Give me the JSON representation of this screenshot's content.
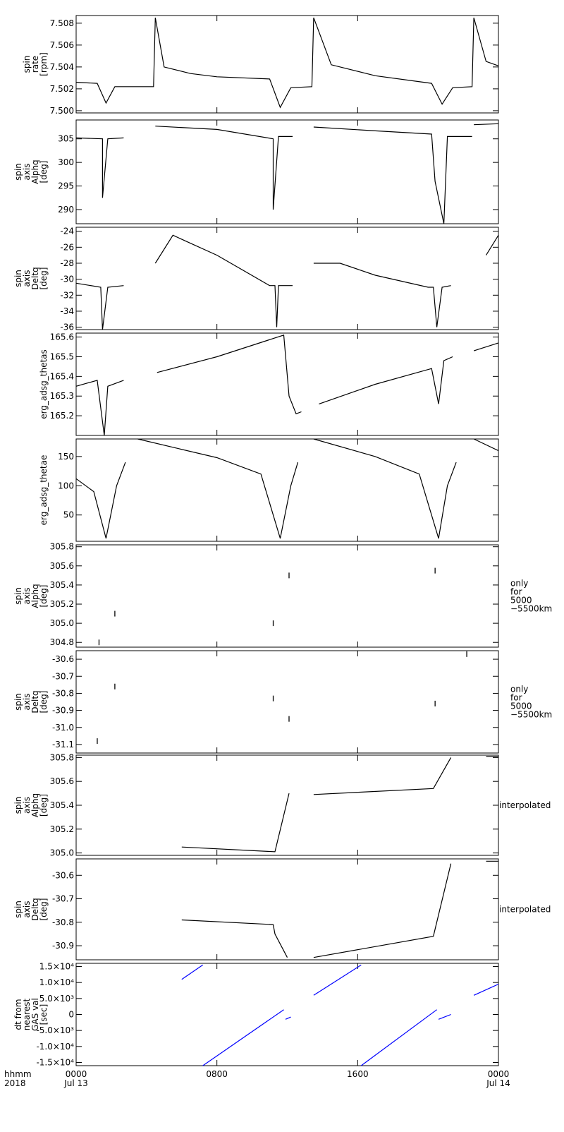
{
  "x_axis": {
    "xlim": [
      0,
      24
    ],
    "xticks": [
      {
        "value": 0,
        "label": "0000"
      },
      {
        "value": 8,
        "label": "0800"
      },
      {
        "value": 16,
        "label": "1600"
      },
      {
        "value": 24,
        "label": "0000"
      }
    ],
    "date_labels": [
      {
        "value": 0,
        "label": "Jul 13"
      },
      {
        "value": 24,
        "label": "Jul 14"
      }
    ],
    "corner_labels": [
      "hhmm",
      "2018"
    ]
  },
  "chart_data": [
    {
      "type": "line",
      "ylabel": [
        "spin",
        "rate",
        "[rpm]"
      ],
      "ylim": [
        7.4998,
        7.5087
      ],
      "yticks": [
        {
          "value": 7.5,
          "label": "7.500"
        },
        7.502,
        7.504,
        7.506,
        7.508
      ],
      "series": [
        {
          "color": "#000000",
          "x": [
            0,
            1.2,
            1.7,
            2.2,
            4.4,
            4.5,
            5,
            6.5,
            8,
            11,
            11.6,
            12.2,
            13.4,
            13.5,
            14.5,
            17,
            20.2,
            20.8,
            21.4,
            22.5,
            22.6,
            23.3,
            24
          ],
          "values": [
            7.5026,
            7.5025,
            7.5007,
            7.5022,
            7.5022,
            7.5085,
            7.504,
            7.5034,
            7.5031,
            7.5029,
            7.5003,
            7.5021,
            7.5022,
            7.5085,
            7.5042,
            7.5032,
            7.5025,
            7.5006,
            7.5021,
            7.5022,
            7.5085,
            7.5045,
            7.5041
          ]
        }
      ]
    },
    {
      "type": "line",
      "ylabel": [
        "spin",
        "axis",
        "Alphq",
        "[deg]"
      ],
      "ylim": [
        287,
        309
      ],
      "yticks": [
        290,
        295,
        300,
        305
      ],
      "series": [
        {
          "color": "#000000",
          "x": [
            0,
            1.5,
            1.5,
            1.8,
            2.7,
            3.5,
            4.5,
            8,
            11.2,
            11.2,
            11.5,
            12.3,
            13,
            13.5,
            17,
            20.2,
            20.4,
            20.9,
            21.1,
            22.5,
            22.55,
            22.6,
            24
          ],
          "values": [
            305.2,
            305,
            292.5,
            305,
            305.2,
            null,
            307.7,
            307,
            305,
            290,
            305.5,
            305.5,
            null,
            307.5,
            306.7,
            306,
            296,
            287,
            305.5,
            305.5,
            null,
            308,
            308.2
          ]
        }
      ]
    },
    {
      "type": "line",
      "ylabel": [
        "spin",
        "axis",
        "Deltq",
        "[deg]"
      ],
      "ylim": [
        -36.3,
        -23.5
      ],
      "yticks": [
        -36,
        -34,
        -32,
        -30,
        -28,
        -26,
        -24
      ],
      "series": [
        {
          "color": "#000000",
          "x": [
            0,
            1.4,
            1.5,
            1.8,
            2.7,
            3.5,
            4.5,
            5.5,
            6.5,
            8,
            11,
            11.3,
            11.4,
            11.5,
            12.3,
            13,
            13.5,
            15,
            17,
            20,
            20.3,
            20.5,
            20.8,
            21.3,
            22.5,
            23.3,
            24
          ],
          "values": [
            -30.5,
            -31,
            -36.3,
            -31,
            -30.8,
            null,
            -28,
            -24.5,
            -25.5,
            -27,
            -30.8,
            -30.8,
            -36,
            -30.8,
            -30.8,
            null,
            -28,
            -28,
            -29.5,
            -31,
            -31,
            -36,
            -31,
            -30.8,
            null,
            -27,
            -24.5
          ]
        }
      ]
    },
    {
      "type": "line",
      "ylabel": [
        "erg_adsg_thetas"
      ],
      "ylim": [
        165.1,
        165.62
      ],
      "yticks": [
        165.2,
        165.3,
        165.4,
        165.5,
        165.6
      ],
      "series": [
        {
          "color": "#000000",
          "x": [
            0,
            1.2,
            1.6,
            1.8,
            2.7,
            3.5,
            4.6,
            8,
            11.8,
            12.1,
            12.5,
            12.8,
            13.3,
            13.8,
            17,
            20.2,
            20.6,
            20.9,
            21.4,
            22,
            22.6,
            24
          ],
          "values": [
            165.35,
            165.38,
            165.1,
            165.35,
            165.38,
            null,
            165.42,
            165.5,
            165.61,
            165.3,
            165.21,
            165.22,
            null,
            165.26,
            165.36,
            165.44,
            165.26,
            165.48,
            165.5,
            null,
            165.53,
            165.57
          ]
        }
      ]
    },
    {
      "type": "line",
      "ylabel": [
        "erg_adsg_thetae"
      ],
      "ylim": [
        5,
        180
      ],
      "yticks": [
        50,
        100,
        150
      ],
      "series": [
        {
          "color": "#000000",
          "x": [
            0,
            1,
            1.7,
            2.3,
            2.8,
            3.2,
            3.5,
            8,
            10.5,
            11.6,
            12.2,
            12.6,
            13,
            13.5,
            17,
            19.5,
            20.6,
            21.1,
            21.6,
            22,
            22.6,
            24
          ],
          "values": [
            112,
            90,
            10,
            100,
            140,
            null,
            180,
            148,
            120,
            10,
            100,
            140,
            null,
            180,
            150,
            120,
            10,
            100,
            140,
            null,
            180,
            160
          ]
        }
      ]
    },
    {
      "type": "scatter",
      "ylabel": [
        "spin",
        "axis",
        "Alphq",
        "[deg]"
      ],
      "note": [
        "only",
        "for",
        "5000",
        "−5500km"
      ],
      "ylim": [
        304.75,
        305.82
      ],
      "yticks": [
        304.8,
        {
          "value": 305,
          "label": "305.0"
        },
        305.2,
        305.4,
        305.6,
        305.8
      ],
      "series": [
        {
          "color": "#000000",
          "x": [
            1.3,
            2.2,
            11.2,
            12.1,
            20.4
          ],
          "values": [
            304.8,
            305.1,
            305.0,
            305.5,
            305.55
          ]
        }
      ]
    },
    {
      "type": "scatter",
      "ylabel": [
        "spin",
        "axis",
        "Deltq",
        "[deg]"
      ],
      "note": [
        "only",
        "for",
        "5000",
        "−5500km"
      ],
      "ylim": [
        -31.15,
        -30.55
      ],
      "yticks": [
        {
          "value": -31.1,
          "label": "-31.1"
        },
        {
          "value": -31,
          "label": "-31.0"
        },
        -30.9,
        -30.8,
        -30.7,
        -30.6
      ],
      "series": [
        {
          "color": "#000000",
          "x": [
            1.2,
            2.2,
            11.2,
            12.1,
            20.4,
            22.2
          ],
          "values": [
            -31.08,
            -30.76,
            -30.83,
            -30.95,
            -30.86,
            -30.57
          ]
        }
      ]
    },
    {
      "type": "line",
      "ylabel": [
        "spin",
        "axis",
        "Alphq",
        "[deg]"
      ],
      "note": [
        "interpolated"
      ],
      "ylim": [
        304.98,
        305.82
      ],
      "yticks": [
        {
          "value": 305,
          "label": "305.0"
        },
        305.2,
        305.4,
        305.6,
        305.8
      ],
      "series": [
        {
          "color": "#000000",
          "x": [
            6,
            11.3,
            12.1,
            12.8,
            13.5,
            20.3,
            21.3,
            22.3,
            23.3,
            24
          ],
          "values": [
            305.05,
            305.01,
            305.5,
            null,
            305.49,
            305.54,
            305.8,
            null,
            305.81,
            305.81
          ]
        }
      ]
    },
    {
      "type": "line",
      "ylabel": [
        "spin",
        "axis",
        "Deltq",
        "[deg]"
      ],
      "note": [
        "interpolated"
      ],
      "ylim": [
        -30.96,
        -30.53
      ],
      "yticks": [
        -30.9,
        -30.8,
        -30.7,
        -30.6
      ],
      "series": [
        {
          "color": "#000000",
          "x": [
            6,
            11.2,
            11.3,
            12,
            12.8,
            13.5,
            20.3,
            21.3,
            22.3,
            23.3,
            24
          ],
          "values": [
            -30.79,
            -30.81,
            -30.85,
            -30.95,
            null,
            -30.95,
            -30.86,
            -30.55,
            null,
            -30.54,
            -30.54
          ]
        }
      ]
    },
    {
      "type": "line",
      "ylabel": [
        "dt from",
        "nearest",
        "GAS val",
        "[sec]"
      ],
      "ylim": [
        -16000,
        16000
      ],
      "yticks": [
        {
          "value": -15000,
          "label": "-1.5×10⁴"
        },
        {
          "value": -10000,
          "label": "-1.0×10⁴"
        },
        {
          "value": -5000,
          "label": "-5.0×10³"
        },
        0,
        {
          "value": 5000,
          "label": "5.0×10³"
        },
        {
          "value": 10000,
          "label": "1.0×10⁴"
        },
        {
          "value": 15000,
          "label": "1.5×10⁴"
        }
      ],
      "series": [
        {
          "color": "#0000ff",
          "x": [
            6,
            7.2,
            7.2,
            7.2,
            11.8,
            11.85,
            11.9,
            12.2,
            12.3,
            13.5,
            16.2,
            16.2,
            16.2,
            20.5,
            20.55,
            20.6,
            21.3,
            22,
            22.6,
            24
          ],
          "values": [
            11000,
            15500,
            null,
            -16000,
            1500,
            null,
            -1500,
            -800,
            null,
            6000,
            15500,
            null,
            -16000,
            1500,
            null,
            -1500,
            0,
            null,
            6000,
            9500
          ]
        }
      ]
    }
  ]
}
